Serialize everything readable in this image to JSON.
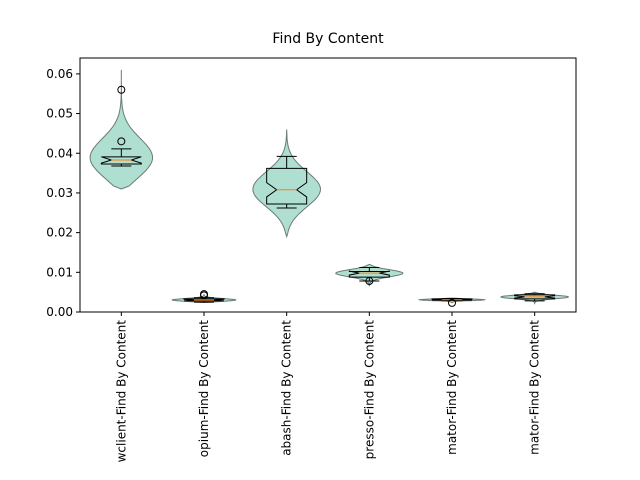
{
  "chart_data": {
    "type": "violin-box",
    "title": "Find By Content",
    "categories": [
      "wclient-Find By Content",
      "opium-Find By Content",
      "abash-Find By Content",
      "presso-Find By Content",
      "mator-Find By Content",
      "mator-Find By Content"
    ],
    "boxes": [
      {
        "whislo": 0.0368,
        "q1": 0.0373,
        "median": 0.0383,
        "q3": 0.0391,
        "whishi": 0.0411,
        "notch_lo": 0.0375,
        "notch_hi": 0.0391,
        "fliers": [
          0.043,
          0.056
        ],
        "violin_min": 0.031,
        "violin_max": 0.061
      },
      {
        "whislo": 0.0025,
        "q1": 0.0028,
        "median": 0.003,
        "q3": 0.0033,
        "whishi": 0.0036,
        "notch_lo": 0.0028,
        "notch_hi": 0.0032,
        "fliers": [
          0.0042,
          0.0045
        ],
        "violin_min": 0.0024,
        "violin_max": 0.0046
      },
      {
        "whislo": 0.0262,
        "q1": 0.0272,
        "median": 0.0308,
        "q3": 0.0362,
        "whishi": 0.0392,
        "notch_lo": 0.029,
        "notch_hi": 0.0326,
        "fliers": [],
        "violin_min": 0.019,
        "violin_max": 0.046
      },
      {
        "whislo": 0.0078,
        "q1": 0.0088,
        "median": 0.0098,
        "q3": 0.0102,
        "whishi": 0.0112,
        "notch_lo": 0.0093,
        "notch_hi": 0.0103,
        "fliers": [
          0.0078
        ],
        "violin_min": 0.0065,
        "violin_max": 0.012
      },
      {
        "whislo": 0.0029,
        "q1": 0.003,
        "median": 0.0031,
        "q3": 0.0033,
        "whishi": 0.0034,
        "notch_lo": 0.003,
        "notch_hi": 0.0032,
        "fliers": [
          0.0023
        ],
        "violin_min": 0.0022,
        "violin_max": 0.0035
      },
      {
        "whislo": 0.0028,
        "q1": 0.0033,
        "median": 0.0038,
        "q3": 0.0043,
        "whishi": 0.0046,
        "notch_lo": 0.0035,
        "notch_hi": 0.0041,
        "fliers": [],
        "violin_min": 0.0022,
        "violin_max": 0.005
      }
    ],
    "ylim": [
      0,
      0.064
    ],
    "yticks": [
      {
        "value": 0,
        "label": "0.00"
      },
      {
        "value": 0.01,
        "label": "0.01"
      },
      {
        "value": 0.02,
        "label": "0.02"
      },
      {
        "value": 0.03,
        "label": "0.03"
      },
      {
        "value": 0.04,
        "label": "0.04"
      },
      {
        "value": 0.05,
        "label": "0.05"
      },
      {
        "value": 0.06,
        "label": "0.06"
      }
    ],
    "violin_color": "#a6dccb",
    "violin_edge_color": "#6b7a74",
    "box_color": "#000000",
    "median_color": "#ff7f0e",
    "grid": false
  }
}
